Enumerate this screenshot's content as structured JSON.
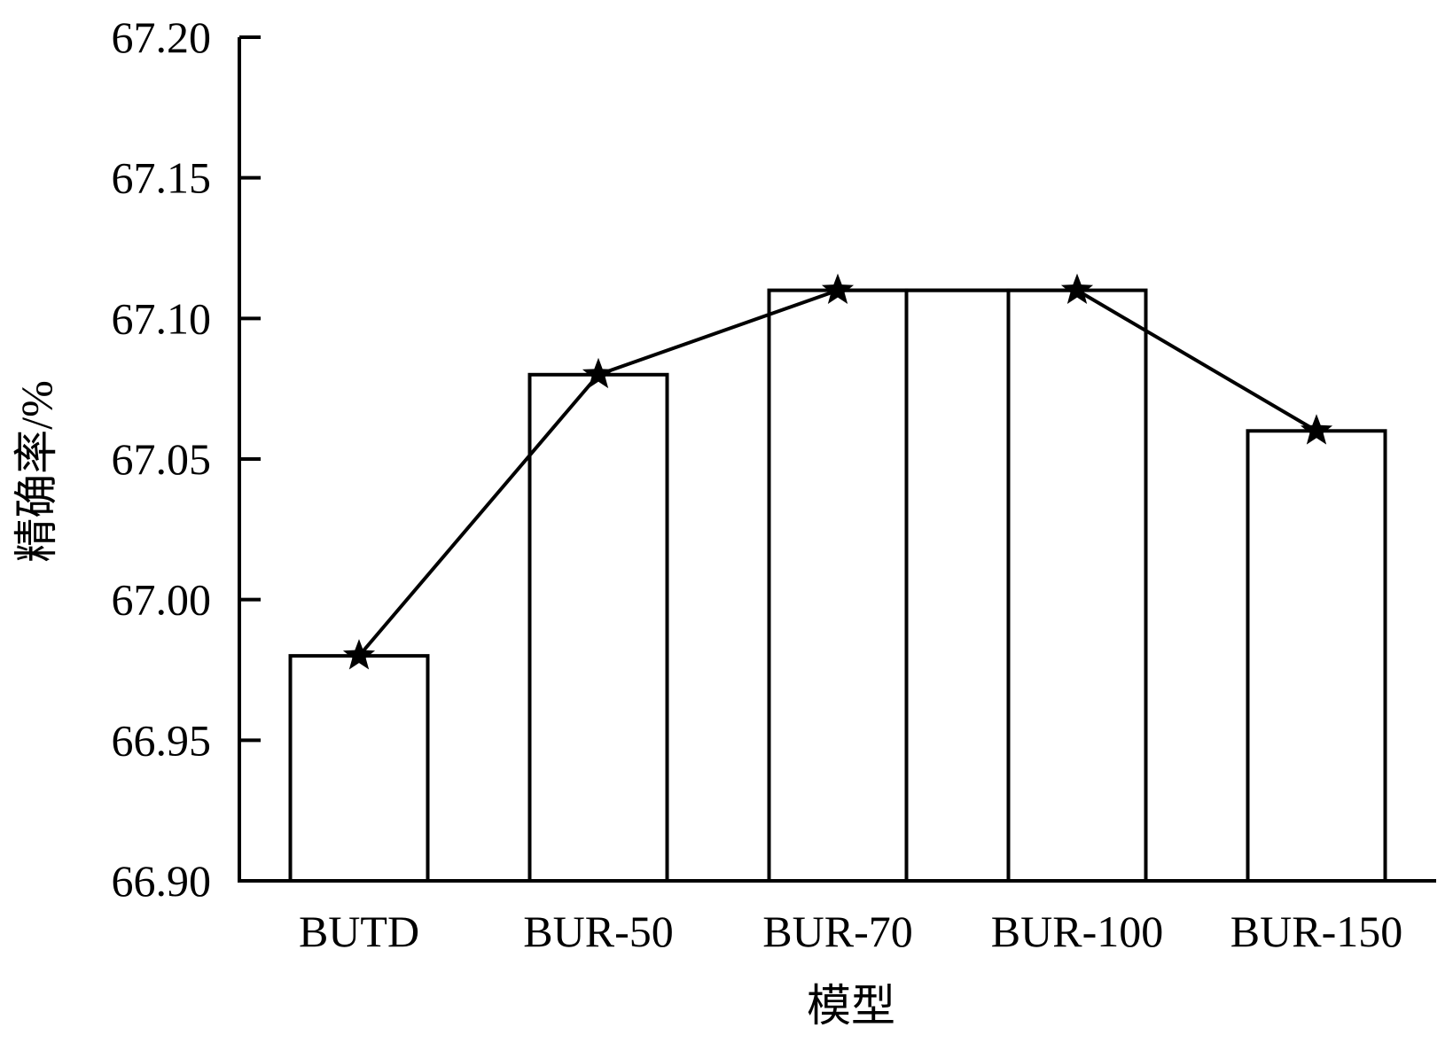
{
  "chart_data": {
    "type": "bar",
    "categories": [
      "BUTD",
      "BUR-50",
      "BUR-70",
      "BUR-100",
      "BUR-150"
    ],
    "values": [
      66.98,
      67.08,
      67.11,
      67.11,
      67.06
    ],
    "line_overlay": {
      "marker": "star",
      "values": [
        66.98,
        67.08,
        67.11,
        67.11,
        67.06
      ]
    },
    "title": "",
    "xlabel": "模型",
    "ylabel": "精确率/%",
    "ylim": [
      66.9,
      67.2
    ],
    "yticks": [
      "66.90",
      "66.95",
      "67.00",
      "67.05",
      "67.10",
      "67.15",
      "67.20"
    ],
    "grid": false,
    "legend": "none",
    "colors": {
      "bar_fill": "#ffffff",
      "bar_stroke": "#000000",
      "line": "#000000",
      "marker": "#000000"
    }
  }
}
